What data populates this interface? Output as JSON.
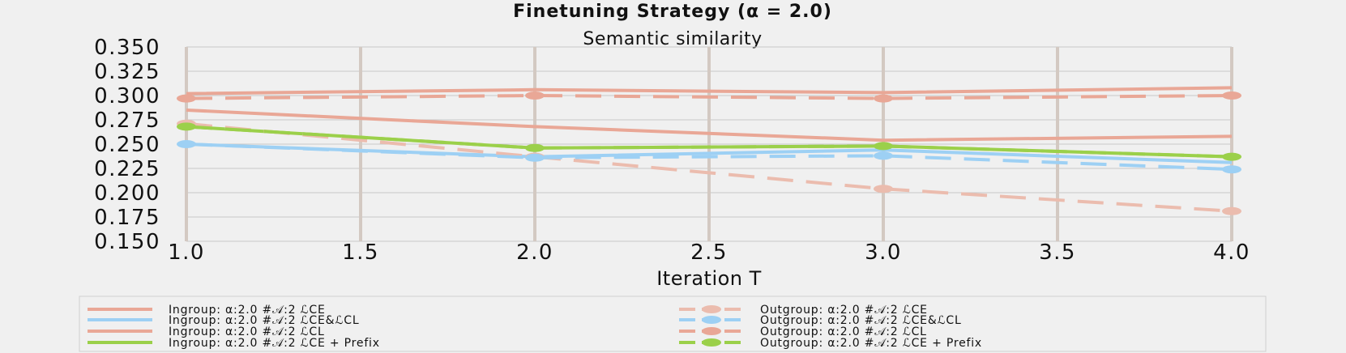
{
  "chart_data": {
    "type": "line",
    "suptitle": "Finetuning Strategy (α = 2.0)",
    "title": "Semantic similarity",
    "xlabel": "Iteration T",
    "ylabel": "",
    "xlim": [
      1.0,
      4.0
    ],
    "ylim": [
      0.15,
      0.35
    ],
    "xticks": [
      "1.0",
      "1.5",
      "2.0",
      "2.5",
      "3.0",
      "3.5",
      "4.0"
    ],
    "yticks": [
      "0.350",
      "0.325",
      "0.300",
      "0.275",
      "0.250",
      "0.225",
      "0.200",
      "0.175",
      "0.150"
    ],
    "grid": true,
    "legend_position": "bottom",
    "x": [
      1,
      2,
      3,
      4
    ],
    "series": [
      {
        "name": "Ingroup: α:2.0 #𝒜:2 ℒCE",
        "values": [
          0.285,
          0.268,
          0.254,
          0.258
        ],
        "color": "#e9a796",
        "style": "solid",
        "marker": false
      },
      {
        "name": "Ingroup: α:2.0 #𝒜:2 ℒCE&ℒCL",
        "values": [
          0.25,
          0.237,
          0.244,
          0.231
        ],
        "color": "#9dd0f4",
        "style": "solid",
        "marker": false
      },
      {
        "name": "Ingroup: α:2.0 #𝒜:2 ℒCL",
        "values": [
          0.302,
          0.306,
          0.303,
          0.308
        ],
        "color": "#e9a796",
        "style": "solid",
        "marker": false
      },
      {
        "name": "Ingroup: α:2.0 #𝒜:2 ℒCE + Prefix",
        "values": [
          0.268,
          0.246,
          0.248,
          0.237
        ],
        "color": "#9bd04a",
        "style": "solid",
        "marker": false
      },
      {
        "name": "Outgroup: α:2.0 #𝒜:2 ℒCE",
        "values": [
          0.271,
          0.237,
          0.204,
          0.181
        ],
        "color": "#ebbcae",
        "style": "dashed",
        "marker": true
      },
      {
        "name": "Outgroup: α:2.0 #𝒜:2 ℒCE&ℒCL",
        "values": [
          0.25,
          0.236,
          0.238,
          0.224
        ],
        "color": "#9dd0f4",
        "style": "dashed",
        "marker": true
      },
      {
        "name": "Outgroup: α:2.0 #𝒜:2 ℒCL",
        "values": [
          0.297,
          0.3,
          0.297,
          0.3
        ],
        "color": "#e9a796",
        "style": "dashed",
        "marker": true
      },
      {
        "name": "Outgroup: α:2.0 #𝒜:2 ℒCE + Prefix",
        "values": [
          0.268,
          0.246,
          0.248,
          0.237
        ],
        "color": "#9bd04a",
        "style": "dashed",
        "marker": true
      }
    ]
  }
}
